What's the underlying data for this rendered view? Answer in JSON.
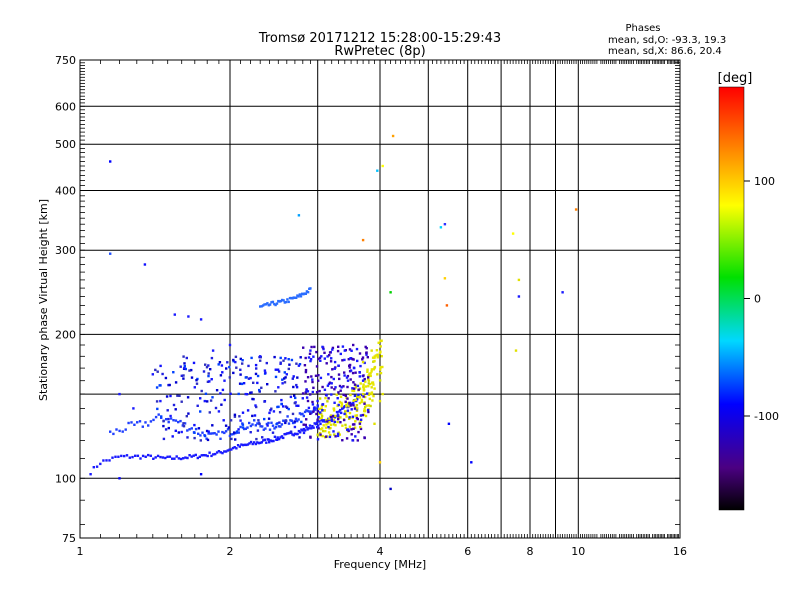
{
  "chart_data": {
    "type": "scatter",
    "title": "Tromsø 20171212 15:28:00-15:29:43",
    "subtitle": "RwPretec (8p)",
    "xlabel": "Frequency [MHz]",
    "ylabel": "Stationary phase Virtual Height [km]",
    "x_scale": "log",
    "y_scale": "log",
    "xlim": [
      1,
      16
    ],
    "ylim": [
      75,
      750
    ],
    "x_ticks": [
      1,
      2,
      4,
      6,
      8,
      10,
      16
    ],
    "x_minor_ticks": [
      3,
      5,
      7,
      9
    ],
    "y_ticks": [
      75,
      100,
      200,
      300,
      400,
      500,
      600,
      750
    ],
    "y_gridlines": [
      100,
      150,
      200,
      300,
      400,
      500,
      600
    ],
    "grid": true,
    "phase_info": {
      "header": "Phases",
      "o_line": "mean, sd,O: -93.3, 19.3",
      "x_line": "mean, sd,X:  86.6, 20.4"
    },
    "colorbar": {
      "label": "[deg]",
      "range": [
        -180,
        180
      ],
      "ticks": [
        100,
        0,
        -100
      ]
    },
    "trace_lower_o": {
      "x": [
        1.05,
        1.1,
        1.2,
        1.35,
        1.5,
        1.7,
        1.9,
        2.05,
        2.2,
        2.4,
        2.6,
        2.8,
        3.0,
        3.2,
        3.4,
        3.6
      ],
      "y": [
        103,
        108,
        111,
        111,
        110,
        111,
        113,
        116,
        118,
        120,
        123,
        126,
        130,
        134,
        140,
        146
      ]
    },
    "trace_mid_o": {
      "x": [
        1.15,
        1.25,
        1.35,
        1.45,
        1.55,
        1.65,
        1.75,
        1.85,
        2.0,
        2.2,
        2.4,
        2.6,
        2.8,
        3.0
      ],
      "y": [
        124,
        128,
        130,
        134,
        132,
        128,
        124,
        122,
        125,
        130,
        128,
        132,
        135,
        140
      ]
    },
    "trace_upper_o": {
      "x": [
        2.3,
        2.45,
        2.6,
        2.75,
        2.9
      ],
      "y": [
        228,
        232,
        235,
        240,
        248
      ]
    },
    "trace_x_cluster": {
      "x": [
        3.0,
        3.2,
        3.4,
        3.55,
        3.65,
        3.75,
        3.85,
        3.95,
        4.05
      ],
      "y": [
        130,
        132,
        134,
        138,
        142,
        148,
        155,
        165,
        178
      ]
    },
    "scatter_o": {
      "x": [
        1.2,
        1.28,
        1.4,
        1.52,
        1.62,
        1.7,
        1.78,
        1.85,
        1.95,
        2.05,
        2.15,
        2.25,
        2.35,
        2.45,
        2.55,
        2.65,
        2.75,
        2.85,
        2.95,
        3.05,
        3.15,
        3.25,
        3.35,
        3.45,
        3.55,
        1.55,
        1.65,
        1.75,
        2.0,
        2.3,
        2.6,
        2.9,
        3.1,
        3.3,
        3.5,
        3.7,
        1.45,
        1.9,
        2.2,
        2.5,
        2.8,
        3.2,
        3.4,
        3.6,
        1.6,
        2.1,
        2.4,
        2.7,
        3.0
      ],
      "y": [
        150,
        140,
        165,
        135,
        170,
        155,
        145,
        185,
        160,
        175,
        150,
        142,
        168,
        138,
        158,
        148,
        172,
        152,
        140,
        180,
        165,
        175,
        155,
        160,
        170,
        220,
        218,
        215,
        190,
        180,
        165,
        185,
        178,
        172,
        168,
        160,
        145,
        138,
        162,
        155,
        147,
        158,
        185,
        176,
        125,
        132,
        137,
        128,
        142
      ]
    },
    "scatter_x": {
      "x": [
        3.6,
        3.7,
        3.8,
        3.9,
        4.0,
        3.75,
        3.85,
        3.95,
        3.65,
        3.8,
        3.9,
        4.05,
        3.7,
        3.85
      ],
      "y": [
        140,
        150,
        160,
        170,
        145,
        135,
        155,
        165,
        128,
        142,
        130,
        150,
        175,
        185
      ]
    },
    "scatter_sparse": {
      "x": [
        1.15,
        1.15,
        1.35,
        2.75,
        3.7,
        3.95,
        4.05,
        4.25,
        5.3,
        5.4,
        5.4,
        5.45,
        7.4,
        7.6,
        7.6,
        7.5,
        9.3,
        9.9,
        4.2,
        4.2,
        6.1,
        1.2,
        1.75,
        5.5,
        4.0
      ],
      "y": [
        460,
        295,
        280,
        355,
        315,
        440,
        450,
        520,
        335,
        340,
        262,
        230,
        325,
        240,
        260,
        185,
        245,
        365,
        245,
        95,
        108,
        100,
        102,
        130,
        108
      ]
    }
  }
}
